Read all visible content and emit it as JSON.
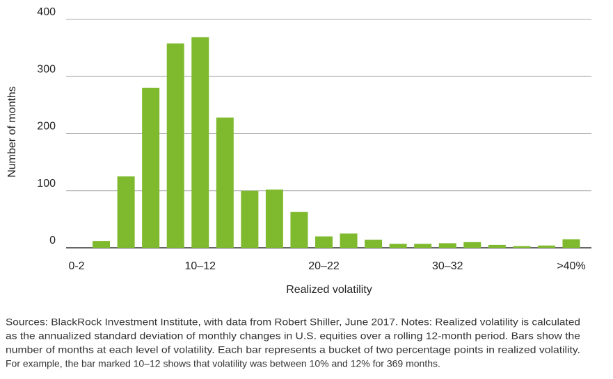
{
  "chart_data": {
    "type": "bar",
    "categories": [
      "0-2",
      null,
      null,
      null,
      null,
      "10–12",
      null,
      null,
      null,
      null,
      "20–22",
      null,
      null,
      null,
      null,
      "30–32",
      null,
      null,
      null,
      null,
      ">40%"
    ],
    "values": [
      0,
      12,
      125,
      280,
      358,
      369,
      228,
      100,
      102,
      63,
      20,
      25,
      14,
      7,
      7,
      8,
      10,
      5,
      3,
      4,
      15
    ],
    "color": "#7fba2e",
    "ylim": [
      0,
      400
    ],
    "yticks": [
      0,
      100,
      200,
      300,
      400
    ],
    "grid": true,
    "xlabel": "Realized volatility",
    "ylabel": "Number of months",
    "notes": [
      "Sources: BlackRock Investment Institute, with data from Robert Shiller, June 2017. Notes: Realized volatility is calculated",
      "as the annualized standard deviation of monthly changes in U.S. equities over a rolling 12-month period. Bars show the",
      "number of months at each level of volatility. Each bar represents a bucket of two percentage points in realized volatility.",
      "For example, the bar marked 10–12 shows that volatility was between 10% and 12% for 369 months."
    ]
  }
}
